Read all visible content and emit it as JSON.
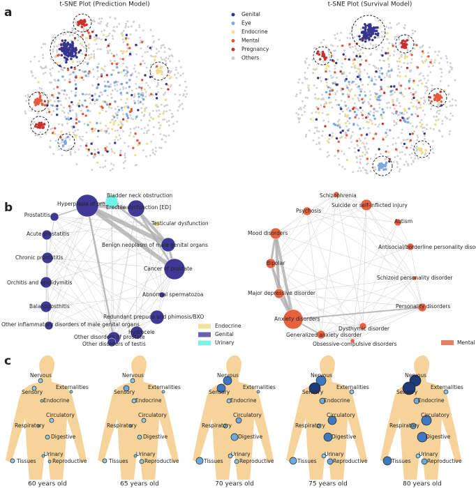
{
  "panel_labels": [
    "a",
    "b",
    "c"
  ],
  "tsne": {
    "titles": [
      "t-SNE Plot (Prediction Model)",
      "t-SNE Plot (Survival Model)"
    ],
    "legend": [
      {
        "name": "Genital",
        "color": "#35358f"
      },
      {
        "name": "Eye",
        "color": "#7ea6e0"
      },
      {
        "name": "Endocrine",
        "color": "#f0df8a"
      },
      {
        "name": "Mental",
        "color": "#e8593a"
      },
      {
        "name": "Pregnancy",
        "color": "#c9302c"
      },
      {
        "name": "Others",
        "color": "#cfcfcf"
      }
    ]
  },
  "network_left": {
    "nodes": [
      {
        "label": "Hyperplasia of prostate",
        "group": "Genital"
      },
      {
        "label": "Bladder neck obstruction",
        "group": "Urinary"
      },
      {
        "label": "Erectile dysfunction [ED]",
        "group": "Genital"
      },
      {
        "label": "Testicular dysfunction",
        "group": "Endocrine"
      },
      {
        "label": "Prostatitis",
        "group": "Genital"
      },
      {
        "label": "Acute prostatitis",
        "group": "Genital"
      },
      {
        "label": "Benign neoplasm of male genital organs",
        "group": "Genital"
      },
      {
        "label": "Chronic prostatitis",
        "group": "Genital"
      },
      {
        "label": "Cancer of prostate",
        "group": "Genital"
      },
      {
        "label": "Orchitis and epididymitis",
        "group": "Genital"
      },
      {
        "label": "Abnormal spermatozoa",
        "group": "Genital"
      },
      {
        "label": "Balanoposthitis",
        "group": "Genital"
      },
      {
        "label": "Redundant prepuce and phimosis/BXO",
        "group": "Genital"
      },
      {
        "label": "Other inflammatory disorders of male genital organs",
        "group": "Genital"
      },
      {
        "label": "Hydrocele",
        "group": "Genital"
      },
      {
        "label": "Other disorders of prostate",
        "group": "Genital"
      },
      {
        "label": "Other disorders of testis",
        "group": "Genital"
      }
    ],
    "legend": [
      {
        "name": "Endocrine",
        "color": "#efe3a0"
      },
      {
        "name": "Genital",
        "color": "#6a62b0"
      },
      {
        "name": "Urinary",
        "color": "#7ff0e8"
      }
    ]
  },
  "network_right": {
    "nodes": [
      {
        "label": "Schizophrenia"
      },
      {
        "label": "Suicide or self-inflicted injury"
      },
      {
        "label": "Psychosis"
      },
      {
        "label": "Autism"
      },
      {
        "label": "Mood disorders"
      },
      {
        "label": "Antisocial/borderline personality disorder"
      },
      {
        "label": "Bipolar"
      },
      {
        "label": "Schizoid personality disorder"
      },
      {
        "label": "Major depressive disorder"
      },
      {
        "label": "Personality disorders"
      },
      {
        "label": "Anxiety disorders"
      },
      {
        "label": "Dysthymic disorder"
      },
      {
        "label": "Generalized anxiety disorder"
      },
      {
        "label": "Obsessive-compulsive disorders"
      }
    ],
    "legend": [
      {
        "name": "Mental",
        "color": "#e8805f"
      }
    ]
  },
  "body": {
    "systems": [
      "Nervous",
      "Sensory",
      "Externalities",
      "Endocrine",
      "Circulatory",
      "Respiratory",
      "Digestive",
      "Urinary",
      "Tissues",
      "Reproductive"
    ],
    "ages": [
      "60 years old",
      "65 years old",
      "70 years old",
      "75 years old",
      "80 years old"
    ]
  }
}
